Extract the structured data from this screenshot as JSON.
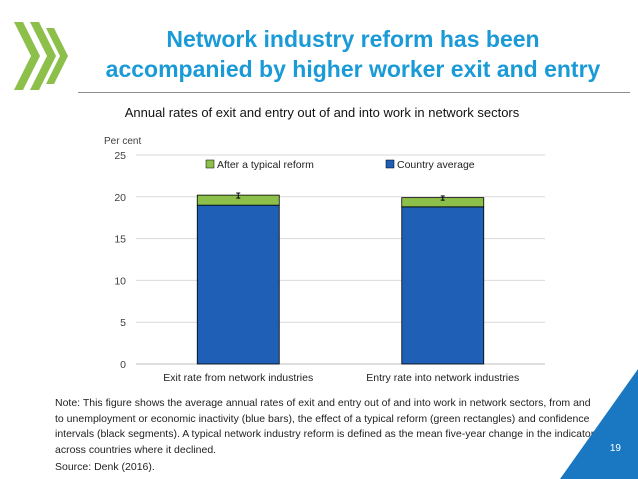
{
  "header": {
    "title_line1": "Network industry reform has been",
    "title_line2": "accompanied by higher worker exit and entry"
  },
  "chart_data": {
    "type": "bar",
    "stacked": true,
    "title": "Annual rates of exit and entry out of and into work in network sectors",
    "ylabel": "Per cent",
    "xlabel": "",
    "ylim": [
      0,
      25
    ],
    "yticks": [
      0,
      5,
      10,
      15,
      20,
      25
    ],
    "categories": [
      "Exit rate from network industries",
      "Entry rate into network industries"
    ],
    "series": [
      {
        "name": "Country average",
        "values": [
          19.0,
          18.8
        ],
        "color": "#1f5fb5"
      },
      {
        "name": "After a typical reform",
        "values": [
          1.2,
          1.1
        ],
        "color": "#8cc04b"
      }
    ],
    "error_bars": [
      [
        19.85,
        20.45
      ],
      [
        19.6,
        20.1
      ]
    ],
    "legend_position": "top",
    "grid": true
  },
  "footer": {
    "note": "Note: This figure shows the average annual rates of exit and entry out of and into work in network sectors, from and to unemployment or economic inactivity (blue bars), the effect of a typical reform (green rectangles) and confidence intervals (black segments). A typical network industry reform is defined as the mean five-year change in the indicator across countries where it declined.",
    "source": "Source: Denk (2016).",
    "page_number": "19"
  },
  "colors": {
    "title": "#1a9ad6",
    "logo_green": "#8cc04b",
    "corner_blue": "#1a78c2"
  }
}
